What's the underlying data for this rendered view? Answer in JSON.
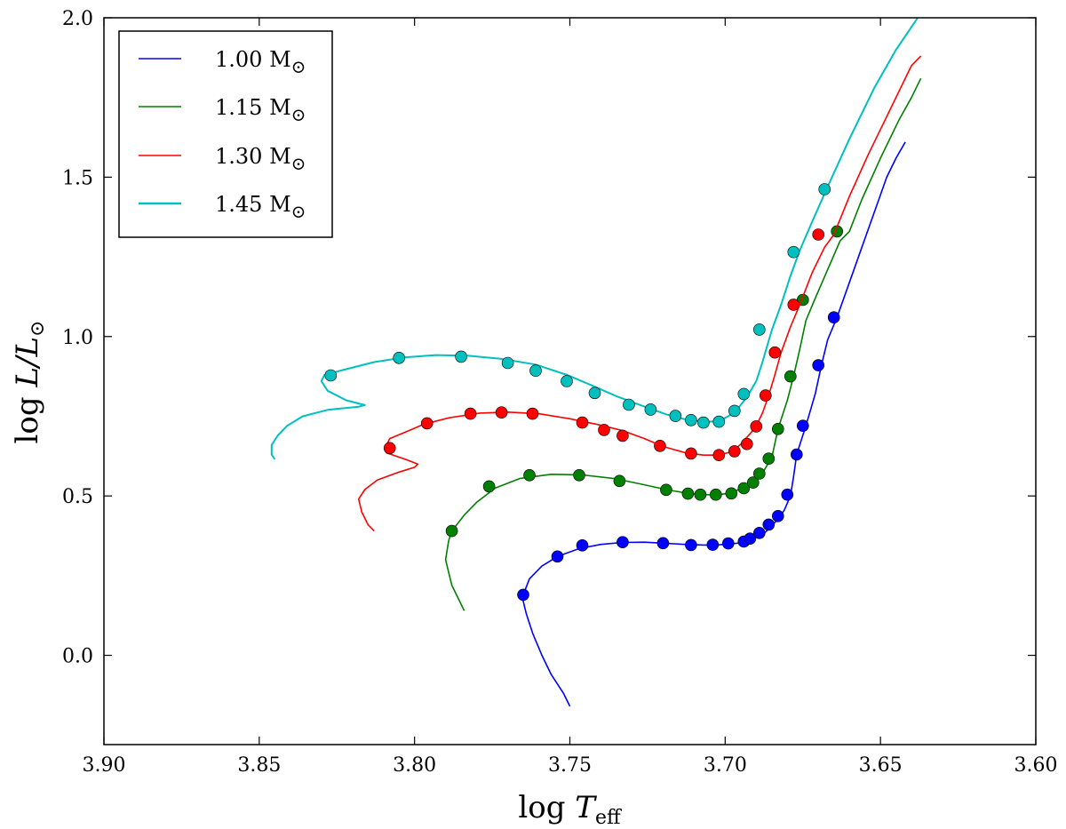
{
  "chart_data": {
    "type": "line",
    "xlabel": {
      "main": "log ",
      "var": "T",
      "sub": "eff"
    },
    "ylabel": {
      "main": "log ",
      "var": "L/L",
      "sub": "⊙"
    },
    "xlim": [
      3.9,
      3.6
    ],
    "ylim": [
      -0.28,
      2.0
    ],
    "x_axis_reversed": true,
    "x_ticks": [
      "3.90",
      "3.85",
      "3.80",
      "3.75",
      "3.70",
      "3.65",
      "3.60"
    ],
    "x_tick_values": [
      3.9,
      3.85,
      3.8,
      3.75,
      3.7,
      3.65,
      3.6
    ],
    "y_ticks": [
      "0.0",
      "0.5",
      "1.0",
      "1.5",
      "2.0"
    ],
    "y_tick_values": [
      0.0,
      0.5,
      1.0,
      1.5,
      2.0
    ],
    "grid": false,
    "legend_position": "top-left",
    "series": [
      {
        "name": "1.00 M⊙",
        "label_main": "1.00 M",
        "label_sub": "⊙",
        "color": "#0000ff",
        "line": [
          [
            3.75,
            -0.16
          ],
          [
            3.752,
            -0.12
          ],
          [
            3.756,
            -0.06
          ],
          [
            3.759,
            0.0
          ],
          [
            3.762,
            0.07
          ],
          [
            3.764,
            0.13
          ],
          [
            3.765,
            0.17
          ],
          [
            3.765,
            0.19
          ],
          [
            3.763,
            0.24
          ],
          [
            3.759,
            0.28
          ],
          [
            3.754,
            0.31
          ],
          [
            3.747,
            0.335
          ],
          [
            3.74,
            0.348
          ],
          [
            3.733,
            0.354
          ],
          [
            3.726,
            0.355
          ],
          [
            3.72,
            0.352
          ],
          [
            3.713,
            0.348
          ],
          [
            3.707,
            0.346
          ],
          [
            3.703,
            0.346
          ],
          [
            3.699,
            0.349
          ],
          [
            3.696,
            0.352
          ],
          [
            3.694,
            0.357
          ],
          [
            3.692,
            0.364
          ],
          [
            3.689,
            0.374
          ],
          [
            3.687,
            0.387
          ],
          [
            3.685,
            0.406
          ],
          [
            3.683,
            0.428
          ],
          [
            3.681,
            0.455
          ],
          [
            3.679,
            0.5
          ],
          [
            3.678,
            0.56
          ],
          [
            3.677,
            0.63
          ],
          [
            3.674,
            0.72
          ],
          [
            3.671,
            0.82
          ],
          [
            3.669,
            0.91
          ],
          [
            3.667,
            0.99
          ],
          [
            3.664,
            1.06
          ],
          [
            3.66,
            1.17
          ],
          [
            3.656,
            1.28
          ],
          [
            3.652,
            1.39
          ],
          [
            3.648,
            1.5
          ],
          [
            3.645,
            1.56
          ],
          [
            3.642,
            1.61
          ]
        ],
        "markers": [
          [
            3.765,
            0.19
          ],
          [
            3.754,
            0.31
          ],
          [
            3.746,
            0.345
          ],
          [
            3.733,
            0.355
          ],
          [
            3.72,
            0.352
          ],
          [
            3.711,
            0.346
          ],
          [
            3.704,
            0.347
          ],
          [
            3.699,
            0.351
          ],
          [
            3.694,
            0.357
          ],
          [
            3.692,
            0.366
          ],
          [
            3.689,
            0.384
          ],
          [
            3.686,
            0.41
          ],
          [
            3.683,
            0.437
          ],
          [
            3.68,
            0.504
          ],
          [
            3.677,
            0.63
          ],
          [
            3.675,
            0.72
          ],
          [
            3.67,
            0.91
          ],
          [
            3.665,
            1.06
          ]
        ]
      },
      {
        "name": "1.15 M⊙",
        "label_main": "1.15 M",
        "label_sub": "⊙",
        "color": "#008000",
        "line": [
          [
            3.784,
            0.14
          ],
          [
            3.786,
            0.18
          ],
          [
            3.788,
            0.22
          ],
          [
            3.789,
            0.26
          ],
          [
            3.79,
            0.3
          ],
          [
            3.789,
            0.36
          ],
          [
            3.788,
            0.39
          ],
          [
            3.784,
            0.44
          ],
          [
            3.78,
            0.48
          ],
          [
            3.774,
            0.525
          ],
          [
            3.766,
            0.555
          ],
          [
            3.756,
            0.568
          ],
          [
            3.746,
            0.566
          ],
          [
            3.736,
            0.555
          ],
          [
            3.727,
            0.537
          ],
          [
            3.719,
            0.52
          ],
          [
            3.712,
            0.508
          ],
          [
            3.707,
            0.504
          ],
          [
            3.703,
            0.503
          ],
          [
            3.699,
            0.508
          ],
          [
            3.695,
            0.522
          ],
          [
            3.692,
            0.538
          ],
          [
            3.69,
            0.553
          ],
          [
            3.688,
            0.572
          ],
          [
            3.685,
            0.62
          ],
          [
            3.683,
            0.71
          ],
          [
            3.68,
            0.8
          ],
          [
            3.678,
            0.875
          ],
          [
            3.676,
            0.96
          ],
          [
            3.674,
            1.05
          ],
          [
            3.671,
            1.12
          ],
          [
            3.667,
            1.21
          ],
          [
            3.663,
            1.3
          ],
          [
            3.66,
            1.33
          ],
          [
            3.656,
            1.43
          ],
          [
            3.65,
            1.56
          ],
          [
            3.644,
            1.68
          ],
          [
            3.64,
            1.75
          ],
          [
            3.637,
            1.81
          ]
        ],
        "markers": [
          [
            3.788,
            0.39
          ],
          [
            3.776,
            0.53
          ],
          [
            3.763,
            0.565
          ],
          [
            3.747,
            0.565
          ],
          [
            3.734,
            0.547
          ],
          [
            3.719,
            0.519
          ],
          [
            3.712,
            0.507
          ],
          [
            3.708,
            0.504
          ],
          [
            3.703,
            0.504
          ],
          [
            3.698,
            0.508
          ],
          [
            3.694,
            0.524
          ],
          [
            3.691,
            0.542
          ],
          [
            3.689,
            0.57
          ],
          [
            3.686,
            0.617
          ],
          [
            3.683,
            0.71
          ],
          [
            3.679,
            0.875
          ],
          [
            3.675,
            1.115
          ],
          [
            3.664,
            1.33
          ]
        ]
      },
      {
        "name": "1.30 M⊙",
        "label_main": "1.30 M",
        "label_sub": "⊙",
        "color": "#ff0000",
        "line": [
          [
            3.813,
            0.39
          ],
          [
            3.815,
            0.41
          ],
          [
            3.817,
            0.45
          ],
          [
            3.818,
            0.49
          ],
          [
            3.816,
            0.52
          ],
          [
            3.812,
            0.55
          ],
          [
            3.805,
            0.575
          ],
          [
            3.8,
            0.59
          ],
          [
            3.799,
            0.6
          ],
          [
            3.803,
            0.615
          ],
          [
            3.809,
            0.635
          ],
          [
            3.809,
            0.66
          ],
          [
            3.808,
            0.68
          ],
          [
            3.803,
            0.7
          ],
          [
            3.797,
            0.725
          ],
          [
            3.789,
            0.745
          ],
          [
            3.779,
            0.76
          ],
          [
            3.77,
            0.763
          ],
          [
            3.76,
            0.758
          ],
          [
            3.75,
            0.742
          ],
          [
            3.741,
            0.724
          ],
          [
            3.733,
            0.705
          ],
          [
            3.726,
            0.68
          ],
          [
            3.72,
            0.655
          ],
          [
            3.713,
            0.636
          ],
          [
            3.707,
            0.628
          ],
          [
            3.702,
            0.628
          ],
          [
            3.699,
            0.636
          ],
          [
            3.697,
            0.645
          ],
          [
            3.695,
            0.662
          ],
          [
            3.692,
            0.695
          ],
          [
            3.69,
            0.72
          ],
          [
            3.688,
            0.76
          ],
          [
            3.686,
            0.815
          ],
          [
            3.684,
            0.88
          ],
          [
            3.682,
            0.95
          ],
          [
            3.679,
            1.03
          ],
          [
            3.676,
            1.1
          ],
          [
            3.672,
            1.2
          ],
          [
            3.668,
            1.28
          ],
          [
            3.665,
            1.32
          ],
          [
            3.66,
            1.44
          ],
          [
            3.654,
            1.57
          ],
          [
            3.648,
            1.69
          ],
          [
            3.643,
            1.79
          ],
          [
            3.64,
            1.85
          ],
          [
            3.637,
            1.88
          ]
        ],
        "markers": [
          [
            3.808,
            0.65
          ],
          [
            3.796,
            0.728
          ],
          [
            3.782,
            0.758
          ],
          [
            3.772,
            0.762
          ],
          [
            3.762,
            0.758
          ],
          [
            3.746,
            0.73
          ],
          [
            3.739,
            0.707
          ],
          [
            3.733,
            0.689
          ],
          [
            3.721,
            0.657
          ],
          [
            3.711,
            0.633
          ],
          [
            3.702,
            0.628
          ],
          [
            3.697,
            0.64
          ],
          [
            3.693,
            0.663
          ],
          [
            3.69,
            0.718
          ],
          [
            3.687,
            0.815
          ],
          [
            3.684,
            0.95
          ],
          [
            3.678,
            1.1
          ],
          [
            3.67,
            1.32
          ]
        ]
      },
      {
        "name": "1.45 M⊙",
        "label_main": "1.45 M",
        "label_sub": "⊙",
        "color": "#00bfbf",
        "line": [
          [
            3.845,
            0.615
          ],
          [
            3.846,
            0.63
          ],
          [
            3.846,
            0.66
          ],
          [
            3.844,
            0.69
          ],
          [
            3.841,
            0.72
          ],
          [
            3.836,
            0.75
          ],
          [
            3.828,
            0.77
          ],
          [
            3.818,
            0.78
          ],
          [
            3.816,
            0.785
          ],
          [
            3.822,
            0.8
          ],
          [
            3.828,
            0.83
          ],
          [
            3.83,
            0.86
          ],
          [
            3.829,
            0.88
          ],
          [
            3.823,
            0.895
          ],
          [
            3.813,
            0.92
          ],
          [
            3.803,
            0.935
          ],
          [
            3.793,
            0.942
          ],
          [
            3.783,
            0.94
          ],
          [
            3.772,
            0.93
          ],
          [
            3.761,
            0.912
          ],
          [
            3.751,
            0.88
          ],
          [
            3.743,
            0.847
          ],
          [
            3.735,
            0.813
          ],
          [
            3.727,
            0.784
          ],
          [
            3.719,
            0.756
          ],
          [
            3.712,
            0.738
          ],
          [
            3.706,
            0.732
          ],
          [
            3.702,
            0.735
          ],
          [
            3.699,
            0.75
          ],
          [
            3.696,
            0.773
          ],
          [
            3.693,
            0.81
          ],
          [
            3.69,
            0.86
          ],
          [
            3.688,
            0.92
          ],
          [
            3.685,
            1.02
          ],
          [
            3.682,
            1.1
          ],
          [
            3.679,
            1.19
          ],
          [
            3.676,
            1.27
          ],
          [
            3.672,
            1.36
          ],
          [
            3.667,
            1.47
          ],
          [
            3.66,
            1.62
          ],
          [
            3.652,
            1.78
          ],
          [
            3.645,
            1.9
          ],
          [
            3.638,
            2.0
          ]
        ],
        "markers": [
          [
            3.827,
            0.878
          ],
          [
            3.805,
            0.933
          ],
          [
            3.785,
            0.937
          ],
          [
            3.77,
            0.917
          ],
          [
            3.761,
            0.893
          ],
          [
            3.751,
            0.86
          ],
          [
            3.742,
            0.823
          ],
          [
            3.731,
            0.786
          ],
          [
            3.724,
            0.771
          ],
          [
            3.716,
            0.751
          ],
          [
            3.711,
            0.738
          ],
          [
            3.707,
            0.73
          ],
          [
            3.702,
            0.733
          ],
          [
            3.697,
            0.767
          ],
          [
            3.694,
            0.82
          ],
          [
            3.689,
            1.022
          ],
          [
            3.678,
            1.265
          ],
          [
            3.668,
            1.462
          ]
        ]
      }
    ]
  }
}
